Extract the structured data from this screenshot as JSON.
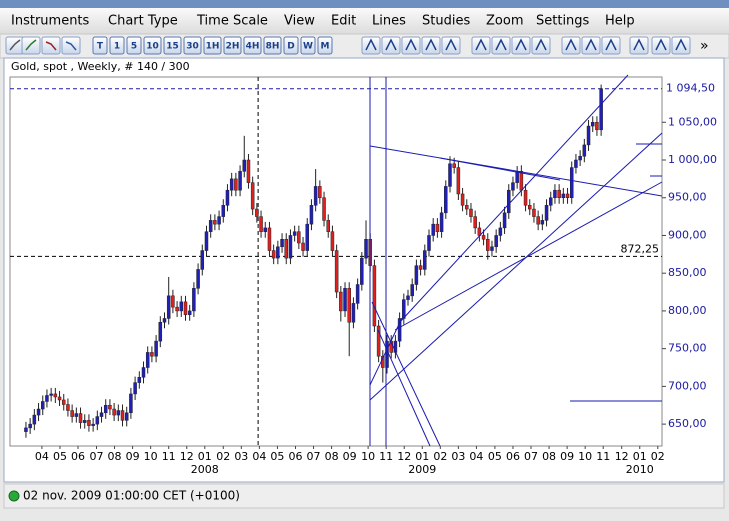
{
  "menu": [
    "Instruments",
    "Chart Type",
    "Time Scale",
    "View",
    "Edit",
    "Lines",
    "Studies",
    "Zoom",
    "Settings",
    "Help"
  ],
  "toolbar": {
    "buttons": [
      "T",
      "1",
      "5",
      "10",
      "15",
      "30",
      "1H",
      "2H",
      "4H",
      "8H",
      "D",
      "W",
      "M"
    ],
    "more": "»"
  },
  "status": "02 nov. 2009 01:00:00 CET (+0100)",
  "chart_data": {
    "type": "candlestick",
    "title": "Gold, spot , Weekly, # 140 / 300",
    "up_color": "#2020b8",
    "down_color": "#e02020",
    "ylim": [
      621,
      1110
    ],
    "yticks": [
      {
        "value": 650,
        "label": "650,00"
      },
      {
        "value": 700,
        "label": "700,00"
      },
      {
        "value": 750,
        "label": "750,00"
      },
      {
        "value": 800,
        "label": "800,00"
      },
      {
        "value": 850,
        "label": "850,00"
      },
      {
        "value": 900,
        "label": "900,00"
      },
      {
        "value": 950,
        "label": "950,00"
      },
      {
        "value": 1000,
        "label": "1 000,00"
      },
      {
        "value": 1050,
        "label": "1 050,00"
      }
    ],
    "last_price": {
      "value": 1094.5,
      "label": "1 094,50"
    },
    "crosshair": {
      "value": 872.25,
      "label": "872,25"
    },
    "xlim": [
      -3.8,
      151.5
    ],
    "xticks": [
      {
        "value": 3.8,
        "label": "04"
      },
      {
        "value": 8.1,
        "label": "05"
      },
      {
        "value": 12.4,
        "label": "06"
      },
      {
        "value": 16.8,
        "label": "07"
      },
      {
        "value": 21.1,
        "label": "08"
      },
      {
        "value": 25.4,
        "label": "09"
      },
      {
        "value": 29.7,
        "label": "10"
      },
      {
        "value": 34.0,
        "label": "11"
      },
      {
        "value": 38.3,
        "label": "12"
      },
      {
        "value": 42.6,
        "label": "01"
      },
      {
        "value": 47.0,
        "label": "02"
      },
      {
        "value": 51.3,
        "label": "03"
      },
      {
        "value": 55.6,
        "label": "04"
      },
      {
        "value": 59.9,
        "label": "05"
      },
      {
        "value": 64.2,
        "label": "06"
      },
      {
        "value": 68.5,
        "label": "07"
      },
      {
        "value": 72.8,
        "label": "08"
      },
      {
        "value": 77.1,
        "label": "09"
      },
      {
        "value": 81.5,
        "label": "10"
      },
      {
        "value": 85.8,
        "label": "11"
      },
      {
        "value": 90.1,
        "label": "12"
      },
      {
        "value": 94.4,
        "label": "01"
      },
      {
        "value": 98.7,
        "label": "02"
      },
      {
        "value": 103.0,
        "label": "03"
      },
      {
        "value": 107.3,
        "label": "04"
      },
      {
        "value": 111.7,
        "label": "05"
      },
      {
        "value": 116.0,
        "label": "06"
      },
      {
        "value": 120.3,
        "label": "07"
      },
      {
        "value": 124.6,
        "label": "08"
      },
      {
        "value": 128.9,
        "label": "09"
      },
      {
        "value": 133.2,
        "label": "10"
      },
      {
        "value": 137.5,
        "label": "11"
      },
      {
        "value": 141.9,
        "label": "12"
      },
      {
        "value": 146.2,
        "label": "01"
      },
      {
        "value": 150.5,
        "label": "02"
      }
    ],
    "xyears": [
      {
        "value": 42.6,
        "label": "2008"
      },
      {
        "value": 94.4,
        "label": "2009"
      },
      {
        "value": 146.2,
        "label": "2010"
      }
    ],
    "crosshair_x": 55.3,
    "open": [
      640,
      645,
      650,
      662,
      670,
      680,
      688,
      690,
      686,
      682,
      676,
      668,
      660,
      664,
      652,
      655,
      648,
      650,
      660,
      665,
      675,
      670,
      662,
      668,
      655,
      665,
      690,
      705,
      712,
      725,
      745,
      740,
      760,
      785,
      790,
      820,
      805,
      800,
      812,
      795,
      800,
      830,
      855,
      880,
      905,
      920,
      915,
      925,
      940,
      960,
      975,
      960,
      985,
      1000,
      970,
      935,
      925,
      905,
      910,
      880,
      870,
      885,
      895,
      870,
      900,
      905,
      890,
      880,
      915,
      940,
      965,
      950,
      920,
      905,
      880,
      825,
      800,
      830,
      785,
      810,
      835,
      870,
      895,
      860,
      780,
      740,
      725,
      760,
      745,
      760,
      790,
      815,
      820,
      835,
      860,
      855,
      880,
      900,
      915,
      905,
      930,
      965,
      995,
      990,
      955,
      940,
      935,
      925,
      910,
      900,
      895,
      880,
      885,
      900,
      910,
      930,
      960,
      970,
      985,
      960,
      940,
      935,
      925,
      915,
      920,
      940,
      950,
      960,
      950,
      955,
      950,
      990,
      1000,
      1005,
      1020,
      1045,
      1050,
      1040
    ],
    "high": [
      653,
      658,
      670,
      678,
      688,
      696,
      698,
      698,
      694,
      690,
      684,
      676,
      672,
      672,
      663,
      663,
      658,
      668,
      673,
      683,
      683,
      678,
      676,
      676,
      673,
      698,
      713,
      720,
      733,
      753,
      753,
      768,
      793,
      798,
      845,
      828,
      813,
      820,
      820,
      808,
      838,
      863,
      888,
      913,
      928,
      928,
      933,
      948,
      968,
      983,
      983,
      993,
      1032,
      1008,
      978,
      943,
      933,
      918,
      918,
      888,
      893,
      903,
      903,
      908,
      913,
      913,
      898,
      923,
      948,
      988,
      973,
      958,
      928,
      913,
      888,
      833,
      838,
      838,
      818,
      843,
      878,
      920,
      903,
      868,
      788,
      748,
      768,
      768,
      768,
      798,
      823,
      828,
      843,
      868,
      868,
      888,
      908,
      923,
      923,
      938,
      973,
      1005,
      1003,
      998,
      963,
      948,
      943,
      933,
      918,
      908,
      903,
      893,
      908,
      918,
      938,
      968,
      978,
      992,
      993,
      968,
      948,
      943,
      933,
      928,
      948,
      958,
      968,
      968,
      963,
      963,
      998,
      1008,
      1013,
      1028,
      1053,
      1058,
      1058,
      1100
    ],
    "low": [
      632,
      637,
      642,
      654,
      662,
      672,
      680,
      678,
      674,
      668,
      660,
      652,
      652,
      644,
      644,
      640,
      640,
      642,
      652,
      657,
      662,
      654,
      654,
      647,
      647,
      657,
      682,
      697,
      704,
      717,
      732,
      732,
      752,
      777,
      782,
      797,
      792,
      792,
      787,
      787,
      792,
      822,
      847,
      872,
      897,
      907,
      907,
      917,
      932,
      952,
      952,
      952,
      977,
      962,
      927,
      917,
      897,
      897,
      872,
      862,
      862,
      877,
      862,
      862,
      892,
      882,
      872,
      872,
      907,
      932,
      942,
      912,
      897,
      872,
      817,
      786,
      792,
      740,
      777,
      802,
      827,
      862,
      852,
      772,
      732,
      705,
      717,
      737,
      737,
      752,
      782,
      807,
      812,
      827,
      847,
      847,
      872,
      892,
      897,
      897,
      922,
      957,
      982,
      947,
      932,
      927,
      917,
      902,
      892,
      887,
      868,
      872,
      877,
      892,
      902,
      922,
      952,
      962,
      952,
      932,
      927,
      917,
      907,
      907,
      912,
      932,
      942,
      942,
      942,
      942,
      942,
      982,
      992,
      997,
      1012,
      1037,
      1032,
      1032
    ],
    "close": [
      645,
      650,
      662,
      670,
      680,
      688,
      690,
      686,
      682,
      676,
      668,
      660,
      664,
      652,
      655,
      648,
      650,
      660,
      665,
      675,
      670,
      662,
      668,
      655,
      665,
      690,
      705,
      712,
      725,
      745,
      740,
      760,
      785,
      790,
      820,
      805,
      800,
      812,
      795,
      800,
      830,
      855,
      880,
      905,
      920,
      915,
      925,
      940,
      960,
      975,
      960,
      985,
      1000,
      970,
      935,
      925,
      905,
      910,
      880,
      870,
      885,
      895,
      870,
      900,
      905,
      890,
      880,
      915,
      940,
      965,
      950,
      920,
      905,
      880,
      825,
      800,
      830,
      785,
      810,
      835,
      870,
      895,
      860,
      780,
      740,
      725,
      760,
      745,
      760,
      790,
      815,
      820,
      835,
      860,
      855,
      880,
      900,
      915,
      905,
      930,
      965,
      995,
      990,
      955,
      940,
      935,
      925,
      910,
      900,
      895,
      880,
      885,
      900,
      910,
      930,
      960,
      970,
      985,
      960,
      940,
      935,
      925,
      915,
      920,
      940,
      950,
      960,
      950,
      955,
      950,
      990,
      1000,
      1005,
      1020,
      1045,
      1050,
      1040,
      1094.5
    ]
  }
}
